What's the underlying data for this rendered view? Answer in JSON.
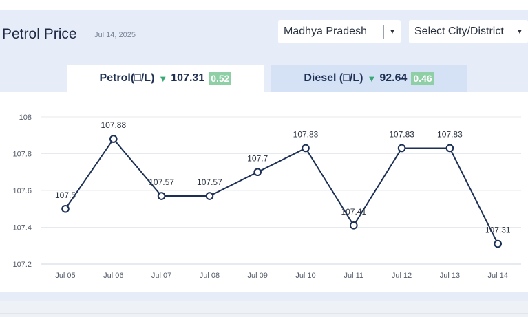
{
  "header": {
    "title": "Petrol Price",
    "date": "Jul 14, 2025"
  },
  "filters": {
    "state": "Madhya Pradesh",
    "city_placeholder": "Select City/District"
  },
  "tabs": [
    {
      "fuel": "Petrol(□/L)",
      "price": "107.31",
      "change": "0.52",
      "trend": "down",
      "active": true
    },
    {
      "fuel": "Diesel (□/L)",
      "price": "92.64",
      "change": "0.46",
      "trend": "down",
      "active": false
    }
  ],
  "colors": {
    "line": "#1c2f55",
    "trend_down": "#3aa776",
    "badge": "#8fcfa6",
    "panel": "#e6edf8",
    "inactive_tab": "#d5e2f6"
  },
  "chart_data": {
    "type": "line",
    "categories": [
      "Jul 05",
      "Jul 06",
      "Jul 07",
      "Jul 08",
      "Jul 09",
      "Jul 10",
      "Jul 11",
      "Jul 12",
      "Jul 13",
      "Jul 14"
    ],
    "values": [
      107.5,
      107.88,
      107.57,
      107.57,
      107.7,
      107.83,
      107.41,
      107.83,
      107.83,
      107.31
    ],
    "data_labels": [
      "107.5",
      "107.88",
      "107.57",
      "107.57",
      "107.7",
      "107.83",
      "107.41",
      "107.83",
      "107.83",
      "107.31"
    ],
    "yticks": [
      107.2,
      107.4,
      107.6,
      107.8,
      108
    ],
    "ytick_labels": [
      "107.2",
      "107.4",
      "107.6",
      "107.8",
      "108"
    ],
    "ylim": [
      107.2,
      108
    ],
    "grid": true
  }
}
